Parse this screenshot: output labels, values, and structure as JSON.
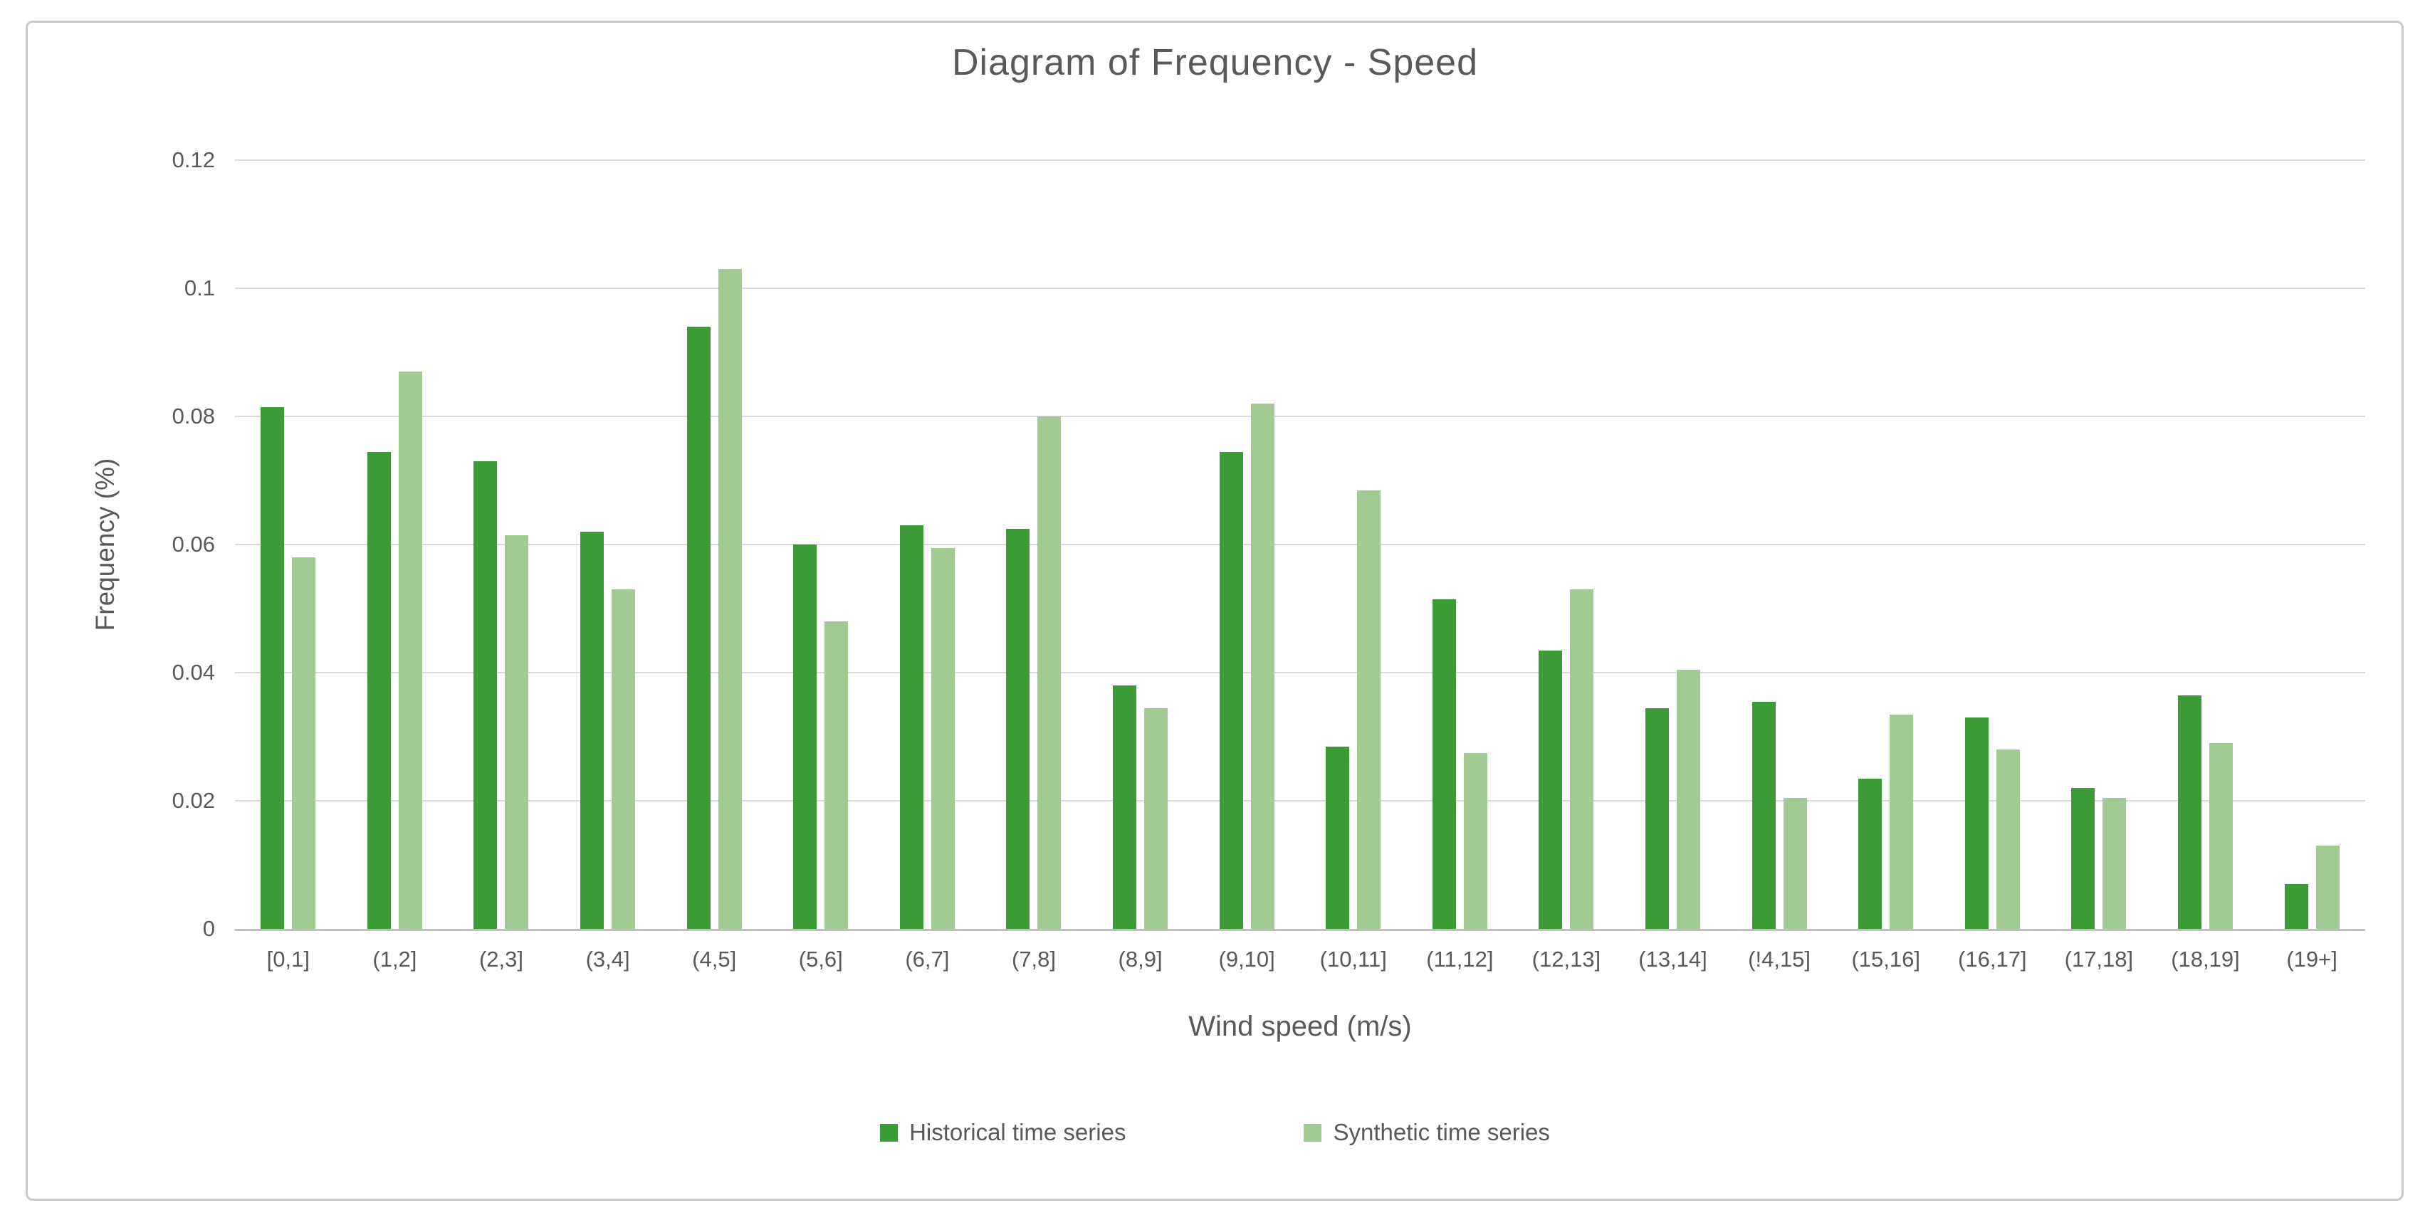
{
  "chart_data": {
    "type": "bar",
    "title": "Diagram of Frequency - Speed",
    "xlabel": "Wind speed (m/s)",
    "ylabel": "Frequency (%)",
    "ylim": [
      0,
      0.12
    ],
    "y_tick_values": [
      0,
      0.02,
      0.04,
      0.06,
      0.08,
      0.1,
      0.12
    ],
    "y_tick_labels": [
      "0",
      "0.02",
      "0.04",
      "0.06",
      "0.08",
      "0.1",
      "0.12"
    ],
    "grid": "horizontal",
    "legend_position": "bottom-center",
    "categories": [
      "[0,1]",
      "(1,2]",
      "(2,3]",
      "(3,4]",
      "(4,5]",
      "(5,6]",
      "(6,7]",
      "(7,8]",
      "(8,9]",
      "(9,10]",
      "(10,11]",
      "(11,12]",
      "(12,13]",
      "(13,14]",
      "(!4,15]",
      "(15,16]",
      "(16,17]",
      "(17,18]",
      "(18,19]",
      "(19+]"
    ],
    "series": [
      {
        "name": "Historical time series",
        "color": "#3b9b35",
        "values": [
          0.0815,
          0.0745,
          0.073,
          0.062,
          0.094,
          0.06,
          0.063,
          0.0625,
          0.038,
          0.0745,
          0.0285,
          0.0515,
          0.0435,
          0.0345,
          0.0355,
          0.0235,
          0.033,
          0.022,
          0.0365,
          0.007
        ]
      },
      {
        "name": "Synthetic time series",
        "color": "#a1cb93",
        "values": [
          0.058,
          0.087,
          0.0615,
          0.053,
          0.103,
          0.048,
          0.0595,
          0.08,
          0.0345,
          0.082,
          0.0685,
          0.0275,
          0.053,
          0.0405,
          0.0205,
          0.0335,
          0.028,
          0.0205,
          0.029,
          0.013
        ]
      }
    ]
  },
  "colors": {
    "text": "#595959",
    "gridline": "#d9d9d9",
    "axis_line": "#bfbfbf",
    "frame_border": "#c9c9c9",
    "background": "#ffffff"
  }
}
